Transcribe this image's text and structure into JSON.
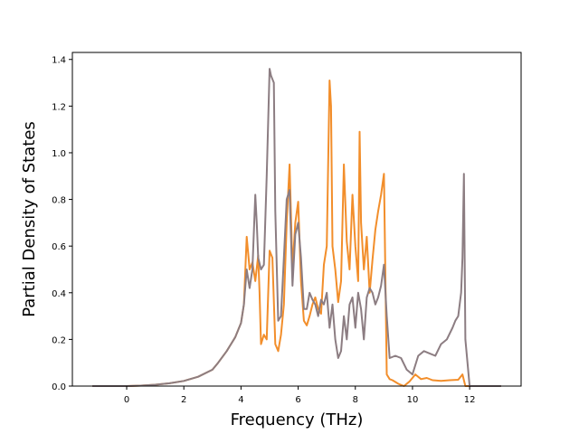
{
  "chart_data": {
    "type": "line",
    "title": "",
    "xlabel": "Frequency (THz)",
    "ylabel": "Partial Density of States",
    "xlim": [
      -1.9,
      13.8
    ],
    "ylim": [
      0.0,
      1.43
    ],
    "xticks": [
      0,
      2,
      4,
      6,
      8,
      10,
      12
    ],
    "yticks": [
      0.0,
      0.2,
      0.4,
      0.6,
      0.8,
      1.0,
      1.2,
      1.4
    ],
    "ytick_labels": [
      "0.0",
      "0.2",
      "0.4",
      "0.6",
      "0.8",
      "1.0",
      "1.2",
      "1.4"
    ],
    "grid": false,
    "legend": "none",
    "series": [
      {
        "color": "#f28e2b",
        "x": [
          -1.2,
          0.0,
          0.5,
          1.0,
          1.5,
          2.0,
          2.5,
          3.0,
          3.2,
          3.5,
          3.8,
          4.0,
          4.1,
          4.2,
          4.3,
          4.4,
          4.5,
          4.6,
          4.65,
          4.7,
          4.8,
          4.9,
          5.0,
          5.1,
          5.2,
          5.3,
          5.4,
          5.5,
          5.6,
          5.7,
          5.8,
          5.9,
          6.0,
          6.1,
          6.2,
          6.3,
          6.4,
          6.5,
          6.6,
          6.7,
          6.8,
          6.9,
          7.0,
          7.1,
          7.15,
          7.2,
          7.3,
          7.4,
          7.5,
          7.6,
          7.7,
          7.8,
          7.9,
          8.0,
          8.1,
          8.15,
          8.2,
          8.3,
          8.4,
          8.5,
          8.6,
          8.7,
          8.8,
          8.9,
          9.0,
          9.1,
          9.2,
          9.3,
          9.5,
          9.7,
          9.9,
          10.1,
          10.3,
          10.5,
          10.7,
          11.0,
          11.3,
          11.6,
          11.75,
          11.85,
          12.0,
          13.1
        ],
        "y": [
          0.0,
          0.0,
          0.002,
          0.006,
          0.012,
          0.022,
          0.04,
          0.07,
          0.1,
          0.15,
          0.21,
          0.27,
          0.35,
          0.64,
          0.5,
          0.53,
          0.45,
          0.56,
          0.4,
          0.18,
          0.22,
          0.2,
          0.58,
          0.55,
          0.18,
          0.15,
          0.22,
          0.35,
          0.7,
          0.95,
          0.5,
          0.7,
          0.79,
          0.45,
          0.28,
          0.26,
          0.3,
          0.35,
          0.38,
          0.33,
          0.31,
          0.52,
          0.6,
          1.31,
          1.2,
          0.6,
          0.5,
          0.36,
          0.45,
          0.95,
          0.62,
          0.5,
          0.82,
          0.6,
          0.45,
          1.09,
          0.7,
          0.5,
          0.64,
          0.4,
          0.54,
          0.67,
          0.75,
          0.82,
          0.91,
          0.05,
          0.03,
          0.025,
          0.01,
          0.0,
          0.02,
          0.05,
          0.03,
          0.035,
          0.025,
          0.022,
          0.025,
          0.027,
          0.05,
          0.0,
          0.0,
          0.0
        ]
      },
      {
        "color": "#8c7d82",
        "x": [
          -1.2,
          0.0,
          0.5,
          1.0,
          1.5,
          2.0,
          2.5,
          3.0,
          3.2,
          3.5,
          3.8,
          4.0,
          4.1,
          4.2,
          4.3,
          4.4,
          4.5,
          4.55,
          4.6,
          4.7,
          4.8,
          4.9,
          5.0,
          5.05,
          5.15,
          5.2,
          5.3,
          5.4,
          5.5,
          5.6,
          5.7,
          5.8,
          5.9,
          6.0,
          6.1,
          6.2,
          6.3,
          6.4,
          6.5,
          6.6,
          6.7,
          6.8,
          6.9,
          7.0,
          7.1,
          7.2,
          7.3,
          7.4,
          7.5,
          7.6,
          7.7,
          7.8,
          7.9,
          8.0,
          8.1,
          8.2,
          8.3,
          8.4,
          8.5,
          8.6,
          8.7,
          8.8,
          8.9,
          9.0,
          9.1,
          9.2,
          9.4,
          9.6,
          9.8,
          10.0,
          10.2,
          10.4,
          10.6,
          10.8,
          11.0,
          11.2,
          11.4,
          11.5,
          11.6,
          11.7,
          11.75,
          11.8,
          11.85,
          12.0,
          13.1
        ],
        "y": [
          0.0,
          0.0,
          0.002,
          0.006,
          0.012,
          0.022,
          0.04,
          0.07,
          0.1,
          0.15,
          0.21,
          0.27,
          0.35,
          0.5,
          0.42,
          0.5,
          0.82,
          0.7,
          0.55,
          0.5,
          0.52,
          0.9,
          1.36,
          1.33,
          1.3,
          0.75,
          0.28,
          0.3,
          0.55,
          0.8,
          0.84,
          0.43,
          0.65,
          0.7,
          0.55,
          0.33,
          0.33,
          0.4,
          0.37,
          0.35,
          0.3,
          0.37,
          0.35,
          0.4,
          0.25,
          0.35,
          0.2,
          0.12,
          0.15,
          0.3,
          0.2,
          0.35,
          0.38,
          0.25,
          0.4,
          0.33,
          0.2,
          0.38,
          0.42,
          0.4,
          0.35,
          0.38,
          0.43,
          0.52,
          0.3,
          0.12,
          0.13,
          0.12,
          0.07,
          0.05,
          0.13,
          0.15,
          0.14,
          0.13,
          0.18,
          0.2,
          0.25,
          0.28,
          0.3,
          0.4,
          0.55,
          0.91,
          0.2,
          0.0,
          0.0
        ]
      }
    ]
  }
}
